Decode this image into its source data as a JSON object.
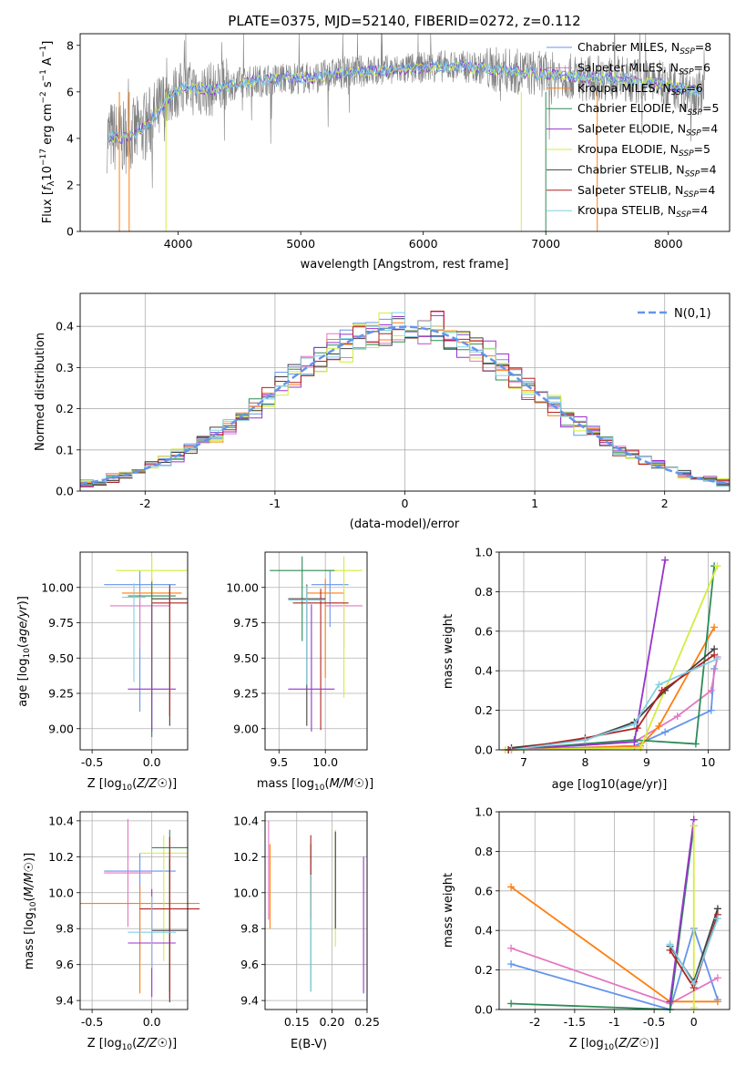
{
  "title": "PLATE=0375, MJD=52140, FIBERID=0272, z=0.112",
  "legend_labels": [
    "Chabrier MILES, N$_{SSP}$=8",
    "Salpeter MILES, N$_{SSP}$=6",
    "Kroupa MILES, N$_{SSP}$=6",
    "Chabrier ELODIE, N$_{SSP}$=5",
    "Salpeter ELODIE, N$_{SSP}$=4",
    "Kroupa ELODIE, N$_{SSP}$=5",
    "Chabrier STELIB, N$_{SSP}$=4",
    "Salpeter STELIB, N$_{SSP}$=4",
    "Kroupa STELIB, N$_{SSP}$=4"
  ],
  "legend_items": [
    {
      "name": "Chabrier MILES, N",
      "sub": "SSP",
      "val": "=8"
    },
    {
      "name": "Salpeter MILES, N",
      "sub": "SSP",
      "val": "=6"
    },
    {
      "name": "Kroupa MILES, N",
      "sub": "SSP",
      "val": "=6"
    },
    {
      "name": "Chabrier ELODIE, N",
      "sub": "SSP",
      "val": "=5"
    },
    {
      "name": "Salpeter ELODIE, N",
      "sub": "SSP",
      "val": "=4"
    },
    {
      "name": "Kroupa ELODIE, N",
      "sub": "SSP",
      "val": "=5"
    },
    {
      "name": "Chabrier STELIB, N",
      "sub": "SSP",
      "val": "=4"
    },
    {
      "name": "Salpeter STELIB, N",
      "sub": "SSP",
      "val": "=4"
    },
    {
      "name": "Kroupa STELIB, N",
      "sub": "SSP",
      "val": "=4"
    }
  ],
  "colors": {
    "series": [
      "#6495ed",
      "#e377c2",
      "#ff7f0e",
      "#2e8b57",
      "#9932cc",
      "#d4ed3c",
      "#404040",
      "#b22222",
      "#80d0e0"
    ],
    "spectrum": "#808080",
    "grid": "#b0b0b0"
  },
  "chart_data": [
    {
      "id": "spectrum",
      "type": "line",
      "xlabel": "wavelength [Angstrom, rest frame]",
      "xlim": [
        3200,
        8500
      ],
      "ylim": [
        0,
        8.5
      ],
      "xticks": [
        4000,
        5000,
        6000,
        7000,
        8000
      ],
      "yticks": [
        0,
        2,
        4,
        6,
        8
      ],
      "data_trend": {
        "x": [
          3450,
          3550,
          3650,
          3750,
          3850,
          3950,
          4050,
          4150,
          4300,
          4500,
          4700,
          4900,
          5100,
          5300,
          5500,
          5700,
          5900,
          6100,
          6300,
          6500,
          6700,
          6900,
          7100,
          7300,
          7500,
          7700,
          7900,
          8100,
          8250
        ],
        "y": [
          4.1,
          4.0,
          4.2,
          4.6,
          5.2,
          5.9,
          6.2,
          6.1,
          6.1,
          6.4,
          6.5,
          6.6,
          6.6,
          6.8,
          6.9,
          6.9,
          7.0,
          7.1,
          7.1,
          7.0,
          6.9,
          6.8,
          6.7,
          6.6,
          6.6,
          6.5,
          6.4,
          6.2,
          6.0
        ]
      },
      "grid": false,
      "legend": "upper-right"
    },
    {
      "id": "residuals",
      "type": "line",
      "xlabel": "(data-model)/error",
      "ylabel": "Normed distribution",
      "xlim": [
        -2.5,
        2.5
      ],
      "ylim": [
        0,
        0.48
      ],
      "xticks": [
        -2,
        -1,
        0,
        1,
        2
      ],
      "yticks": [
        0.0,
        0.1,
        0.2,
        0.3,
        0.4
      ],
      "reference_legend": "N(0,1)",
      "grid": true,
      "legend": "upper-right"
    },
    {
      "id": "age-vs-Z",
      "type": "scatter",
      "xlabel": "Z [log10(Z/Z☉)]",
      "ylabel": "age [log10(age/yr)]",
      "xlim": [
        -0.6,
        0.3
      ],
      "ylim": [
        8.85,
        10.25
      ],
      "xticks": [
        -0.5,
        0.0
      ],
      "yticks": [
        9.0,
        9.25,
        9.5,
        9.75,
        10.0
      ],
      "grid": true
    },
    {
      "id": "age-vs-mass",
      "type": "scatter",
      "xlabel": "mass [log10(M/M☉)]",
      "xlim": [
        9.35,
        10.45
      ],
      "ylim": [
        8.85,
        10.25
      ],
      "xticks": [
        9.5,
        10.0
      ],
      "yticks": [
        9.0,
        9.25,
        9.5,
        9.75,
        10.0
      ],
      "grid": true
    },
    {
      "id": "weight-vs-age",
      "type": "line",
      "xlabel": "age [log10(age/yr)]",
      "ylabel": "mass weight",
      "xlim": [
        6.6,
        10.35
      ],
      "ylim": [
        0,
        1
      ],
      "xticks": [
        7,
        8,
        9,
        10
      ],
      "yticks": [
        0.0,
        0.2,
        0.4,
        0.6,
        0.8,
        1.0
      ],
      "series": [
        {
          "x": [
            6.75,
            8.8,
            9.3,
            10.05,
            10.1
          ],
          "y": [
            0.0,
            0.02,
            0.09,
            0.2,
            0.41
          ]
        },
        {
          "x": [
            6.7,
            8.8,
            9.5,
            10.05,
            10.15
          ],
          "y": [
            0.0,
            0.04,
            0.17,
            0.3,
            0.47
          ]
        },
        {
          "x": [
            6.8,
            8.9,
            9.2,
            10.1
          ],
          "y": [
            0.0,
            0.02,
            0.12,
            0.62
          ]
        },
        {
          "x": [
            6.75,
            8.8,
            9.8,
            10.1
          ],
          "y": [
            0.0,
            0.05,
            0.03,
            0.93
          ]
        },
        {
          "x": [
            6.75,
            8.8,
            9.3
          ],
          "y": [
            0.0,
            0.04,
            0.96
          ]
        },
        {
          "x": [
            6.7,
            8.9,
            10.15
          ],
          "y": [
            0.0,
            0.01,
            0.93
          ]
        },
        {
          "x": [
            6.8,
            8.0,
            8.8,
            9.3,
            10.1
          ],
          "y": [
            0.01,
            0.05,
            0.14,
            0.3,
            0.51
          ]
        },
        {
          "x": [
            6.75,
            8.0,
            8.85,
            9.25,
            10.1
          ],
          "y": [
            0.0,
            0.06,
            0.11,
            0.3,
            0.48
          ]
        },
        {
          "x": [
            6.8,
            8.0,
            8.8,
            9.2,
            10.15
          ],
          "y": [
            0.0,
            0.05,
            0.13,
            0.33,
            0.46
          ]
        }
      ],
      "grid": true
    },
    {
      "id": "mass-vs-Z",
      "type": "scatter",
      "xlabel": "Z [log10(Z/Z☉)]",
      "ylabel": "mass [log10(M/M☉)]",
      "xlim": [
        -0.6,
        0.3
      ],
      "ylim": [
        9.35,
        10.45
      ],
      "xticks": [
        -0.5,
        0.0
      ],
      "yticks": [
        9.4,
        9.6,
        9.8,
        10.0,
        10.2,
        10.4
      ],
      "grid": true
    },
    {
      "id": "mass-vs-EBV",
      "type": "scatter",
      "xlabel": "E(B-V)",
      "xlim": [
        0.105,
        0.25
      ],
      "ylim": [
        9.35,
        10.45
      ],
      "xticks": [
        0.15,
        0.2,
        0.25
      ],
      "yticks": [
        9.4,
        9.6,
        9.8,
        10.0,
        10.2,
        10.4
      ],
      "grid": true
    },
    {
      "id": "weight-vs-Z",
      "type": "line",
      "xlabel": "Z [log10(Z/Z☉)]",
      "ylabel": "mass weight",
      "xlim": [
        -2.45,
        0.45
      ],
      "ylim": [
        0,
        1
      ],
      "xticks": [
        -2.0,
        -1.5,
        -1.0,
        -0.5,
        0.0
      ],
      "yticks": [
        0.0,
        0.2,
        0.4,
        0.6,
        0.8,
        1.0
      ],
      "series": [
        {
          "x": [
            -2.3,
            -0.3,
            0.0,
            0.3
          ],
          "y": [
            0.23,
            0.0,
            0.41,
            0.05
          ]
        },
        {
          "x": [
            -2.3,
            -0.3,
            0.3
          ],
          "y": [
            0.31,
            0.03,
            0.16
          ]
        },
        {
          "x": [
            -2.3,
            -0.3,
            0.3
          ],
          "y": [
            0.62,
            0.04,
            0.04
          ]
        },
        {
          "x": [
            -2.3,
            -0.3,
            0.0
          ],
          "y": [
            0.03,
            0.0,
            0.93
          ]
        },
        {
          "x": [
            -0.3,
            0.0
          ],
          "y": [
            0.04,
            0.96
          ]
        },
        {
          "x": [
            0.0,
            0.0
          ],
          "y": [
            0.01,
            0.93
          ]
        },
        {
          "x": [
            -0.3,
            0.0,
            0.3
          ],
          "y": [
            0.32,
            0.14,
            0.51
          ]
        },
        {
          "x": [
            -0.3,
            0.0,
            0.3
          ],
          "y": [
            0.3,
            0.11,
            0.48
          ]
        },
        {
          "x": [
            -0.3,
            0.0,
            0.3
          ],
          "y": [
            0.33,
            0.13,
            0.46
          ]
        }
      ],
      "grid": true
    }
  ]
}
